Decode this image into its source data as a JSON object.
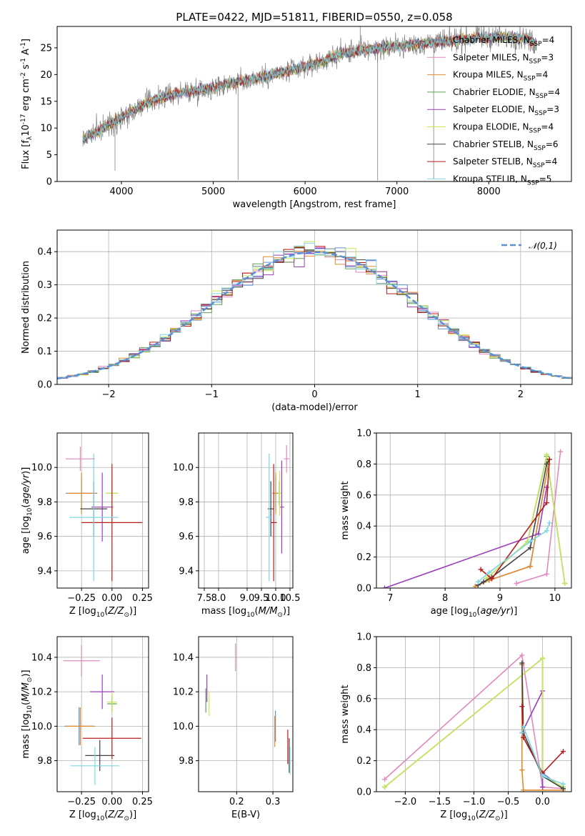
{
  "chart_data": [
    {
      "id": "spectrum",
      "type": "line",
      "title": "PLATE=0422, MJD=51811, FIBERID=0550, z=0.058",
      "xlabel": "wavelength [Angstrom, rest frame]",
      "ylabel": "Flux [f$_\\lambda$10$^{-17}$ erg cm$^{-2}$ s$^{-1}$ A$^{-1}$]",
      "xlim": [
        3300,
        8900
      ],
      "ylim": [
        0,
        29
      ],
      "xticks": [
        4000,
        5000,
        6000,
        7000,
        8000
      ],
      "yticks": [
        0,
        5,
        10,
        15,
        20,
        25
      ],
      "grid": false,
      "legend_position": "right",
      "continuum": {
        "x": [
          3580,
          3700,
          3850,
          3950,
          4050,
          4200,
          4400,
          4600,
          4800,
          5000,
          5200,
          5400,
          5600,
          5800,
          6000,
          6200,
          6400,
          6600,
          6800,
          7000,
          7200,
          7400,
          7600,
          7800,
          8000,
          8200,
          8400,
          8520
        ],
        "y": [
          8.0,
          9.0,
          10.5,
          11.5,
          12.5,
          14.0,
          15.5,
          16.5,
          17.0,
          17.5,
          18.5,
          19.0,
          19.8,
          20.5,
          21.5,
          22.5,
          24.0,
          24.5,
          25.0,
          25.3,
          25.6,
          26.0,
          26.3,
          26.8,
          27.0,
          27.0,
          26.8,
          25.5
        ]
      },
      "series": [
        {
          "name": "Chabrier MILES, N$_{SSP}$=4",
          "color": "#5b8fd6"
        },
        {
          "name": "Salpeter MILES, N$_{SSP}$=3",
          "color": "#e389be"
        },
        {
          "name": "Kroupa MILES, N$_{SSP}$=4",
          "color": "#e38b2f"
        },
        {
          "name": "Chabrier ELODIE, N$_{SSP}$=4",
          "color": "#5f9f55"
        },
        {
          "name": "Salpeter ELODIE, N$_{SSP}$=3",
          "color": "#9b3fb8"
        },
        {
          "name": "Kroupa ELODIE, N$_{SSP}$=4",
          "color": "#c9e65a"
        },
        {
          "name": "Chabrier STELIB, N$_{SSP}$=6",
          "color": "#444444"
        },
        {
          "name": "Salpeter STELIB, N$_{SSP}$=4",
          "color": "#b81c1c"
        },
        {
          "name": "Kroupa STELIB, N$_{SSP}$=5",
          "color": "#7fd6e0"
        }
      ],
      "data_color": "#808080"
    },
    {
      "id": "residuals",
      "type": "line",
      "title": "",
      "xlabel": "(data-model)/error",
      "ylabel": "Normed distribution",
      "xlim": [
        -2.5,
        2.5
      ],
      "ylim": [
        0,
        0.465
      ],
      "xticks": [
        -2,
        -1,
        0,
        1,
        2
      ],
      "yticks": [
        0.0,
        0.1,
        0.2,
        0.3,
        0.4
      ],
      "grid": true,
      "legend_position": "top-right",
      "reference": {
        "name": "$\\mathcal{N}(0,1)$",
        "color": "#5b8fd6",
        "style": "dashed"
      },
      "bin_width": 0.1
    },
    {
      "id": "age-vs-Z",
      "type": "scatter",
      "xlabel": "Z [log$_{10}$($Z/Z_\\odot$)]",
      "ylabel": "age  [log$_{10}$($age/yr$)]",
      "xlim": [
        -0.45,
        0.3
      ],
      "ylim": [
        9.3,
        10.2
      ],
      "xticks": [
        -0.25,
        0.0,
        0.25
      ],
      "yticks": [
        9.4,
        9.6,
        9.8,
        10.0
      ],
      "grid": true,
      "points": [
        {
          "x": -0.25,
          "y": 9.85,
          "xerr": 0.13,
          "yerr": 0.09,
          "color": "#5b8fd6"
        },
        {
          "x": -0.26,
          "y": 10.05,
          "xerr": 0.12,
          "yerr": 0.07,
          "color": "#e389be"
        },
        {
          "x": -0.25,
          "y": 9.85,
          "xerr": 0.12,
          "yerr": 0.12,
          "color": "#e38b2f"
        },
        {
          "x": 0.0,
          "y": 9.85,
          "xerr": 0.04,
          "yerr": 0.07,
          "color": "#5f9f55"
        },
        {
          "x": -0.08,
          "y": 9.77,
          "xerr": 0.09,
          "yerr": 0.2,
          "color": "#9b3fb8"
        },
        {
          "x": 0.0,
          "y": 9.85,
          "xerr": 0.05,
          "yerr": 0.13,
          "color": "#c9e65a"
        },
        {
          "x": -0.15,
          "y": 9.76,
          "xerr": 0.11,
          "yerr": 0.16,
          "color": "#444444"
        },
        {
          "x": 0.0,
          "y": 9.68,
          "xerr": 0.25,
          "yerr": 0.34,
          "color": "#b81c1c"
        },
        {
          "x": -0.15,
          "y": 9.71,
          "xerr": 0.2,
          "yerr": 0.37,
          "color": "#7fd6e0"
        }
      ]
    },
    {
      "id": "age-vs-mass",
      "type": "scatter",
      "xlabel": "mass [log$_{10}$($M/M_\\odot$)]",
      "ylabel": "",
      "xlim": [
        7.3,
        10.6
      ],
      "ylim": [
        9.3,
        10.2
      ],
      "xticks": [
        7.5,
        8.0,
        9.0,
        9.5,
        10.0,
        10.5
      ],
      "yticks": [
        9.4,
        9.6,
        9.8,
        10.0
      ],
      "grid": true,
      "points": [
        {
          "x": 10.0,
          "y": 9.85,
          "xerr": 0.11,
          "yerr": 0.1,
          "color": "#5b8fd6"
        },
        {
          "x": 10.38,
          "y": 10.05,
          "xerr": 0.09,
          "yerr": 0.08,
          "color": "#e389be"
        },
        {
          "x": 10.0,
          "y": 9.85,
          "xerr": 0.12,
          "yerr": 0.12,
          "color": "#e38b2f"
        },
        {
          "x": 10.13,
          "y": 9.85,
          "xerr": 0.06,
          "yerr": 0.07,
          "color": "#5f9f55"
        },
        {
          "x": 10.21,
          "y": 9.77,
          "xerr": 0.08,
          "yerr": 0.27,
          "color": "#9b3fb8"
        },
        {
          "x": 10.14,
          "y": 9.85,
          "xerr": 0.06,
          "yerr": 0.13,
          "color": "#c9e65a"
        },
        {
          "x": 9.83,
          "y": 9.76,
          "xerr": 0.11,
          "yerr": 0.16,
          "color": "#444444"
        },
        {
          "x": 9.93,
          "y": 9.68,
          "xerr": 0.11,
          "yerr": 0.34,
          "color": "#b81c1c"
        },
        {
          "x": 9.77,
          "y": 9.71,
          "xerr": 0.11,
          "yerr": 0.37,
          "color": "#7fd6e0"
        }
      ]
    },
    {
      "id": "mass-weight-vs-age",
      "type": "line",
      "xlabel": "age  [log$_{10}$($age/yr$)]",
      "ylabel": "mass weight",
      "xlim": [
        6.75,
        10.3
      ],
      "ylim": [
        0,
        1
      ],
      "xticks": [
        7,
        8,
        9,
        10
      ],
      "yticks": [
        0.0,
        0.2,
        0.4,
        0.6,
        0.8,
        1.0
      ],
      "grid": true,
      "series": [
        {
          "color": "#5b8fd6",
          "x": [
            8.55,
            8.8,
            9.55,
            9.88
          ],
          "y": [
            0.01,
            0.05,
            0.14,
            0.8
          ]
        },
        {
          "color": "#e389be",
          "x": [
            9.3,
            9.85,
            10.1
          ],
          "y": [
            0.03,
            0.09,
            0.88
          ]
        },
        {
          "color": "#e38b2f",
          "x": [
            8.55,
            8.8,
            9.55,
            9.88
          ],
          "y": [
            0.01,
            0.05,
            0.14,
            0.8
          ]
        },
        {
          "color": "#5f9f55",
          "x": [
            8.75,
            9.5,
            9.85,
            10.18
          ],
          "y": [
            0.06,
            0.3,
            0.85,
            0.03
          ]
        },
        {
          "color": "#9b3fb8",
          "x": [
            6.9,
            9.7,
            9.85
          ],
          "y": [
            0.0,
            0.35,
            0.65
          ]
        },
        {
          "color": "#c9e65a",
          "x": [
            8.75,
            9.5,
            9.85,
            10.18
          ],
          "y": [
            0.06,
            0.3,
            0.86,
            0.03
          ]
        },
        {
          "color": "#444444",
          "x": [
            8.6,
            8.7,
            8.85,
            9.55,
            9.85,
            9.9
          ],
          "y": [
            0.02,
            0.04,
            0.07,
            0.26,
            0.8,
            0.83
          ]
        },
        {
          "color": "#b81c1c",
          "x": [
            8.65,
            8.85,
            9.85,
            9.9
          ],
          "y": [
            0.12,
            0.06,
            0.55,
            0.83
          ]
        },
        {
          "color": "#7fd6e0",
          "x": [
            8.6,
            8.8,
            9.55,
            9.85,
            9.9
          ],
          "y": [
            0.04,
            0.1,
            0.3,
            0.37,
            0.42
          ]
        }
      ]
    },
    {
      "id": "mass-vs-Z",
      "type": "scatter",
      "xlabel": "Z [log$_{10}$($Z/Z_\\odot$)]",
      "ylabel": "mass [log$_{10}$($M/M_\\odot$)]",
      "xlim": [
        -0.45,
        0.3
      ],
      "ylim": [
        9.62,
        10.52
      ],
      "xticks": [
        -0.25,
        0.0,
        0.25
      ],
      "yticks": [
        9.8,
        10.0,
        10.2,
        10.4
      ],
      "grid": true,
      "points": [
        {
          "x": -0.27,
          "y": 10.0,
          "xerr": 0.12,
          "yerr": 0.11,
          "color": "#5b8fd6"
        },
        {
          "x": -0.25,
          "y": 10.38,
          "xerr": 0.15,
          "yerr": 0.09,
          "color": "#e389be"
        },
        {
          "x": -0.26,
          "y": 10.0,
          "xerr": 0.12,
          "yerr": 0.11,
          "color": "#e38b2f"
        },
        {
          "x": 0.0,
          "y": 10.13,
          "xerr": 0.04,
          "yerr": 0.05,
          "color": "#5f9f55"
        },
        {
          "x": -0.08,
          "y": 10.2,
          "xerr": 0.1,
          "yerr": 0.1,
          "color": "#9b3fb8"
        },
        {
          "x": 0.0,
          "y": 10.14,
          "xerr": 0.04,
          "yerr": 0.06,
          "color": "#c9e65a"
        },
        {
          "x": -0.1,
          "y": 9.83,
          "xerr": 0.12,
          "yerr": 0.09,
          "color": "#444444"
        },
        {
          "x": 0.0,
          "y": 9.93,
          "xerr": 0.24,
          "yerr": 0.12,
          "color": "#b81c1c"
        },
        {
          "x": -0.14,
          "y": 9.77,
          "xerr": 0.2,
          "yerr": 0.11,
          "color": "#7fd6e0"
        }
      ]
    },
    {
      "id": "mass-vs-ebv",
      "type": "scatter",
      "xlabel": "E(B-V)",
      "ylabel": "",
      "xlim": [
        0.095,
        0.355
      ],
      "ylim": [
        9.62,
        10.52
      ],
      "xticks": [
        0.2,
        0.3
      ],
      "yticks": [
        9.8,
        10.0,
        10.2,
        10.4
      ],
      "grid": true,
      "points": [
        {
          "x": 0.307,
          "y": 10.0,
          "xerr": 0.0,
          "yerr": 0.09,
          "color": "#5b8fd6"
        },
        {
          "x": 0.197,
          "y": 10.4,
          "xerr": 0.0,
          "yerr": 0.08,
          "color": "#e389be"
        },
        {
          "x": 0.305,
          "y": 9.97,
          "xerr": 0.0,
          "yerr": 0.09,
          "color": "#e38b2f"
        },
        {
          "x": 0.115,
          "y": 10.15,
          "xerr": 0.0,
          "yerr": 0.07,
          "color": "#5f9f55"
        },
        {
          "x": 0.118,
          "y": 10.22,
          "xerr": 0.0,
          "yerr": 0.08,
          "color": "#9b3fb8"
        },
        {
          "x": 0.124,
          "y": 10.13,
          "xerr": 0.0,
          "yerr": 0.07,
          "color": "#c9e65a"
        },
        {
          "x": 0.345,
          "y": 9.83,
          "xerr": 0.0,
          "yerr": 0.1,
          "color": "#444444"
        },
        {
          "x": 0.341,
          "y": 9.88,
          "xerr": 0.0,
          "yerr": 0.1,
          "color": "#b81c1c"
        },
        {
          "x": 0.347,
          "y": 9.8,
          "xerr": 0.0,
          "yerr": 0.08,
          "color": "#7fd6e0"
        }
      ]
    },
    {
      "id": "mass-weight-vs-Z",
      "type": "line",
      "xlabel": "Z [log$_{10}$($Z/Z_\\odot$)]",
      "ylabel": "mass weight",
      "xlim": [
        -2.42,
        0.42
      ],
      "ylim": [
        0,
        1
      ],
      "xticks": [
        -2.0,
        -1.5,
        -1.0,
        -0.5,
        0.0
      ],
      "yticks": [
        0.0,
        0.2,
        0.4,
        0.6,
        0.8,
        1.0
      ],
      "grid": true,
      "series": [
        {
          "color": "#5b8fd6",
          "x": [
            -0.3,
            -0.28,
            0.0,
            0.3
          ],
          "y": [
            0.82,
            0.35,
            0.12,
            0.02
          ]
        },
        {
          "color": "#e389be",
          "x": [
            -2.3,
            -0.3,
            0.0,
            0.3
          ],
          "y": [
            0.08,
            0.88,
            0.03,
            0.02
          ]
        },
        {
          "color": "#e38b2f",
          "x": [
            -0.3,
            -0.3,
            -0.28,
            0.3
          ],
          "y": [
            0.82,
            0.14,
            0.01,
            0.01
          ]
        },
        {
          "color": "#5f9f55",
          "x": [
            -2.3,
            0.0,
            0.0,
            0.3
          ],
          "y": [
            0.03,
            0.86,
            0.1,
            0.03
          ]
        },
        {
          "color": "#9b3fb8",
          "x": [
            -0.3,
            0.0,
            0.0
          ],
          "y": [
            0.38,
            0.65,
            0.03
          ]
        },
        {
          "color": "#c9e65a",
          "x": [
            -2.3,
            0.0,
            0.0,
            0.3
          ],
          "y": [
            0.03,
            0.86,
            0.1,
            0.03
          ]
        },
        {
          "color": "#444444",
          "x": [
            -0.3,
            -0.28,
            0.0,
            0.3
          ],
          "y": [
            0.83,
            0.38,
            0.1,
            0.02
          ]
        },
        {
          "color": "#b81c1c",
          "x": [
            -0.3,
            -0.28,
            0.0,
            0.3
          ],
          "y": [
            0.55,
            0.35,
            0.12,
            0.26
          ]
        },
        {
          "color": "#7fd6e0",
          "x": [
            -0.3,
            -0.28,
            0.0,
            0.3
          ],
          "y": [
            0.38,
            0.42,
            0.1,
            0.05
          ]
        }
      ]
    }
  ]
}
